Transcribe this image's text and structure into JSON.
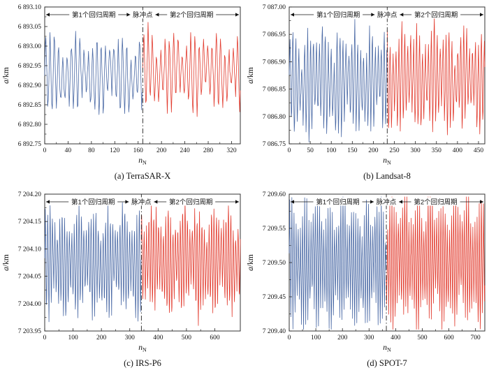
{
  "figure": {
    "background": "#ffffff"
  },
  "labels": {
    "period1": "第1个回归周期",
    "pulse_point": "脉冲点",
    "period2": "第2个回归周期"
  },
  "axis": {
    "y_italic": "a",
    "y_rest": "/km",
    "x_italic": "n",
    "x_sub": "N"
  },
  "colors": {
    "series1": "#4a69a5",
    "series2": "#e23b2e",
    "pulse_line": "#222222"
  },
  "chart_data": [
    {
      "type": "line",
      "caption": "(a) TerraSAR-X",
      "satellite": "TerraSAR-X",
      "xlim": [
        0,
        335
      ],
      "ylim": [
        6892.75,
        6893.1
      ],
      "xticks": [
        0,
        40,
        80,
        120,
        160,
        200,
        240,
        280,
        320
      ],
      "ytick_values": [
        6892.75,
        6892.8,
        6892.85,
        6892.9,
        6892.95,
        6893.0,
        6893.05,
        6893.1
      ],
      "ytick_labels": [
        "6 892.75",
        "6 892.80",
        "6 892.85",
        "6 892.90",
        "6 892.95",
        "6 893.00",
        "6 893.05",
        "6 893.10"
      ],
      "pulse_x": 168,
      "series": [
        {
          "name": "第1个回归周期",
          "color": "#4a69a5",
          "start": 0,
          "end": 168,
          "center": 6892.925
        },
        {
          "name": "第2个回归周期",
          "color": "#e23b2e",
          "start": 168,
          "end": 335,
          "center": 6892.935
        }
      ],
      "signal": {
        "seed": 7,
        "T_fast": 7.3,
        "a_fast": 0.085,
        "T_slow": 55,
        "a_slow": 0.012,
        "T_mod": 23,
        "a_mod": 0.01,
        "T_env": 41,
        "env_depth": 0.3,
        "noise": 0.02,
        "ph1": 0.8,
        "ph2": 2.1
      }
    },
    {
      "type": "line",
      "caption": "(b) Landsat-8",
      "satellite": "Landsat-8",
      "xlim": [
        0,
        465
      ],
      "ylim": [
        7086.75,
        7087.0
      ],
      "xticks": [
        0,
        50,
        100,
        150,
        200,
        250,
        300,
        350,
        400,
        450
      ],
      "ytick_values": [
        7086.75,
        7086.8,
        7086.85,
        7086.9,
        7086.95,
        7087.0
      ],
      "ytick_labels": [
        "7 086.75",
        "7 086.80",
        "7 086.85",
        "7 086.90",
        "7 086.95",
        "7 087.00"
      ],
      "pulse_x": 233,
      "series": [
        {
          "name": "第1个回归周期",
          "color": "#4a69a5",
          "start": 0,
          "end": 233,
          "center": 7086.862
        },
        {
          "name": "第2个回归周期",
          "color": "#e23b2e",
          "start": 233,
          "end": 465,
          "center": 7086.868
        }
      ],
      "signal": {
        "seed": 13,
        "T_fast": 7.0,
        "a_fast": 0.082,
        "T_slow": 70,
        "a_slow": 0.01,
        "T_mod": 19,
        "a_mod": 0.009,
        "T_env": 37,
        "env_depth": 0.3,
        "noise": 0.018,
        "ph1": 1.4,
        "ph2": 0.6
      }
    },
    {
      "type": "line",
      "caption": "(c) IRS-P6",
      "satellite": "IRS-P6",
      "xlim": [
        0,
        690
      ],
      "ylim": [
        7203.95,
        7204.2
      ],
      "xticks": [
        0,
        100,
        200,
        300,
        400,
        500,
        600
      ],
      "ytick_values": [
        7203.95,
        7204.0,
        7204.05,
        7204.1,
        7204.15,
        7204.2
      ],
      "ytick_labels": [
        "7 203.95",
        "7 204.00",
        "7 204.05",
        "7 204.10",
        "7 204.15",
        "7 204.20"
      ],
      "pulse_x": 341,
      "series": [
        {
          "name": "第1个回归周期",
          "color": "#4a69a5",
          "start": 0,
          "end": 341,
          "center": 7204.075
        },
        {
          "name": "第2个回归周期",
          "color": "#e23b2e",
          "start": 341,
          "end": 690,
          "center": 7204.078
        }
      ],
      "signal": {
        "seed": 21,
        "T_fast": 8.5,
        "a_fast": 0.082,
        "T_slow": 120,
        "a_slow": 0.008,
        "T_mod": 31,
        "a_mod": 0.008,
        "T_env": 53,
        "env_depth": 0.3,
        "noise": 0.016,
        "ph1": 0.3,
        "ph2": 1.9
      }
    },
    {
      "type": "line",
      "caption": "(d) SPOT-7",
      "satellite": "SPOT-7",
      "xlim": [
        0,
        735
      ],
      "ylim": [
        7209.4,
        7209.6
      ],
      "xticks": [
        0,
        100,
        200,
        300,
        400,
        500,
        600,
        700
      ],
      "ytick_values": [
        7209.4,
        7209.45,
        7209.5,
        7209.55,
        7209.6
      ],
      "ytick_labels": [
        "7 209.40",
        "7 209.45",
        "7 209.50",
        "7 209.55",
        "7 209.60"
      ],
      "pulse_x": 365,
      "series": [
        {
          "name": "第1个回归周期",
          "color": "#4a69a5",
          "start": 0,
          "end": 365,
          "center": 7209.498
        },
        {
          "name": "第2个回归周期",
          "color": "#e23b2e",
          "start": 365,
          "end": 735,
          "center": 7209.503
        }
      ],
      "signal": {
        "seed": 33,
        "T_fast": 8.0,
        "a_fast": 0.072,
        "T_slow": 110,
        "a_slow": 0.007,
        "T_mod": 29,
        "a_mod": 0.007,
        "T_env": 47,
        "env_depth": 0.3,
        "noise": 0.015,
        "ph1": 2.2,
        "ph2": 0.9
      }
    }
  ]
}
